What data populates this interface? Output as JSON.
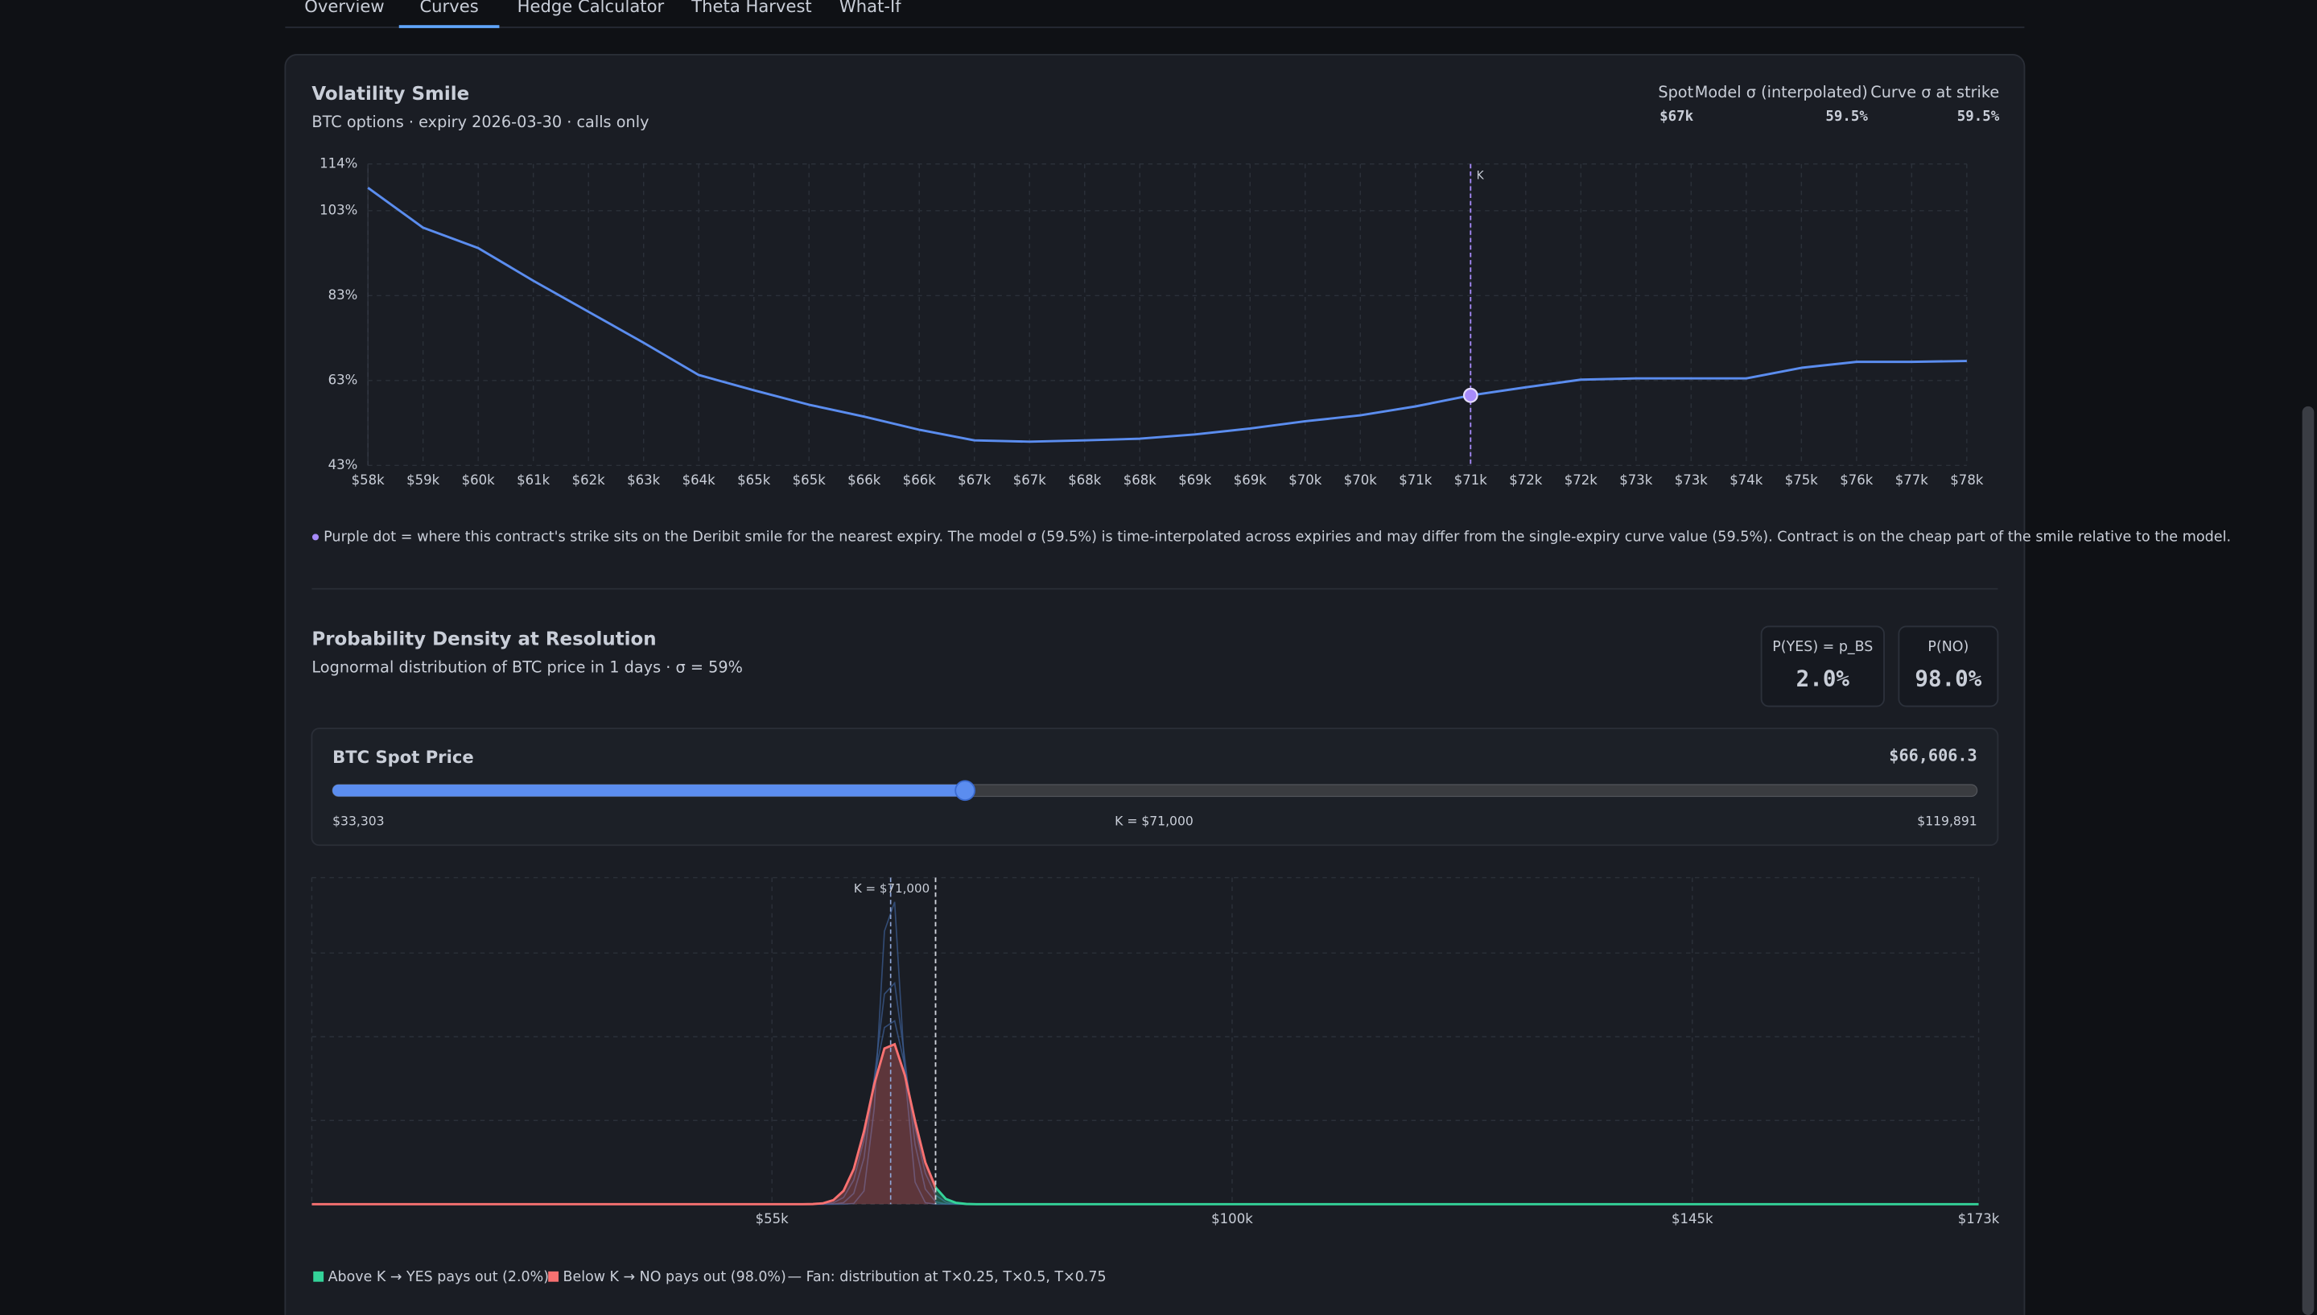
{
  "tabs": [
    {
      "label": "Overview",
      "active": false
    },
    {
      "label": "Curves",
      "active": true
    },
    {
      "label": "Hedge Calculator",
      "active": false
    },
    {
      "label": "Theta Harvest",
      "active": false
    },
    {
      "label": "What-If",
      "active": false
    }
  ],
  "chart_data": [
    {
      "type": "line",
      "title": "Volatility Smile",
      "subtitle": "BTC options · expiry 2026-03-30 · calls only",
      "stats": [
        {
          "label": "Spot",
          "value": "$67k"
        },
        {
          "label": "Model σ (interpolated)",
          "value": "59.5%"
        },
        {
          "label": "Curve σ at strike",
          "value": "59.5%"
        }
      ],
      "categories": [
        "$58k",
        "$59k",
        "$60k",
        "$61k",
        "$62k",
        "$63k",
        "$64k",
        "$65k",
        "$65k",
        "$66k",
        "$66k",
        "$67k",
        "$67k",
        "$68k",
        "$68k",
        "$69k",
        "$69k",
        "$70k",
        "$70k",
        "$71k",
        "$71k",
        "$72k",
        "$72k",
        "$73k",
        "$73k",
        "$74k",
        "$75k",
        "$76k",
        "$77k",
        "$78k"
      ],
      "values": [
        108.4,
        99.0,
        94.2,
        86.5,
        79.2,
        71.9,
        64.3,
        60.7,
        57.3,
        54.5,
        51.4,
        48.9,
        48.6,
        48.9,
        49.3,
        50.3,
        51.7,
        53.4,
        54.8,
        56.9,
        59.5,
        61.4,
        63.2,
        63.5,
        63.5,
        63.5,
        66.0,
        67.4,
        67.4,
        67.6
      ],
      "color": "#5b8def",
      "ylim": [
        43,
        114
      ],
      "yticks": [
        {
          "value": 43,
          "label": "43%"
        },
        {
          "value": 63,
          "label": "63%"
        },
        {
          "value": 83,
          "label": "83%"
        },
        {
          "value": 103,
          "label": "103%"
        },
        {
          "value": 114,
          "label": "114%"
        }
      ],
      "grid": true,
      "strike": {
        "label": "K",
        "index": 20,
        "value": 59.5,
        "color": "#a78bfa"
      },
      "note": "Purple dot = where this contract's strike sits on the Deribit smile for the nearest expiry. The model σ (59.5%) is time-interpolated across expiries and may differ from the single-expiry curve value (59.5%). Contract is on the cheap part of the smile relative to the model."
    },
    {
      "type": "line",
      "title": "Probability Density at Resolution",
      "subtitle": "Lognormal distribution of BTC price in 1 days · σ = 59%",
      "x": [
        10000,
        58000,
        59000,
        60000,
        61000,
        62000,
        63000,
        64000,
        65000,
        66000,
        67000,
        68000,
        69000,
        70000,
        71000,
        72000,
        73000,
        74000,
        75000,
        76000,
        173000
      ],
      "series": [
        {
          "color": "#f87171",
          "values": [
            0,
            0,
            0.0002,
            0.0011,
            0.0048,
            0.0159,
            0.042,
            0.0869,
            0.143,
            0.186,
            0.191,
            0.154,
            0.099,
            0.0499,
            0.02,
            0.0063,
            0.0016,
            0.0003,
            0,
            0,
            0
          ]
        },
        {
          "color": "#3b5b8f",
          "values": [
            0,
            0,
            0,
            0,
            0,
            0,
            0.0008,
            0.0158,
            0.114,
            0.326,
            0.361,
            0.156,
            0.0263,
            0.0017,
            0,
            0,
            0,
            0,
            0,
            0,
            0
          ]
        },
        {
          "color": "#3b5b8f",
          "values": [
            0,
            0,
            0,
            0,
            0,
            0.0018,
            0.0129,
            0.055,
            0.15,
            0.251,
            0.264,
            0.173,
            0.071,
            0.0181,
            0.0029,
            0.0003,
            0,
            0,
            0,
            0,
            0
          ]
        },
        {
          "color": "#3b5b8f",
          "values": [
            0,
            0,
            0,
            0,
            0.0016,
            0.008,
            0.029,
            0.077,
            0.149,
            0.211,
            0.219,
            0.165,
            0.091,
            0.037,
            0.0108,
            0.0024,
            0.0004,
            0,
            0,
            0,
            0
          ]
        }
      ],
      "above_color": "#34d399",
      "xlim": [
        10000,
        173000
      ],
      "xticks": [
        {
          "value": 55000,
          "label": "$55k"
        },
        {
          "value": 100000,
          "label": "$100k"
        },
        {
          "value": 145000,
          "label": "$145k"
        },
        {
          "value": 173000,
          "label": "$173k"
        }
      ],
      "ylim": [
        0,
        0.39
      ],
      "yticks": [
        0,
        0.1,
        0.2,
        0.3
      ],
      "grid": true,
      "strike": 71000,
      "strike_label": "K = $71,000",
      "probabilities": [
        {
          "label": "P(YES) = p_BS",
          "value": 2.0,
          "value_label": "2.0%"
        },
        {
          "label": "P(NO)",
          "value": 98.0,
          "value_label": "98.0%"
        }
      ],
      "legend": [
        {
          "label": "Above K → YES pays out (2.0%)",
          "color": "#34d399"
        },
        {
          "label": "Below K → NO pays out (98.0%)",
          "color": "#f87171"
        },
        {
          "label": "— Fan: distribution at T×0.25, T×0.5, T×0.75",
          "color": "#2f4a78"
        }
      ]
    }
  ],
  "slider": {
    "label": "BTC Spot Price",
    "value": 66606.3,
    "value_label": "$66,606.3",
    "min": 33303,
    "min_label": "$33,303",
    "max": 119891,
    "max_label": "$119,891",
    "center_label": "K = $71,000"
  }
}
